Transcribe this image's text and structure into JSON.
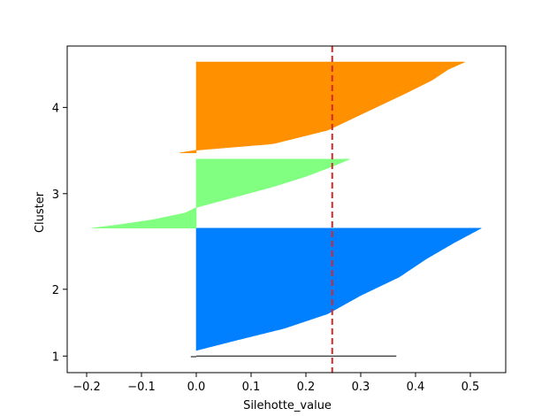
{
  "chart_data": {
    "type": "silhouette",
    "title": "",
    "xlabel": "Silehotte_value",
    "ylabel": "Cluster",
    "xlim": [
      -0.235,
      0.555
    ],
    "x_ticks": [
      -0.2,
      -0.1,
      0.0,
      0.1,
      0.2,
      0.3,
      0.4,
      0.5
    ],
    "x_tick_labels": [
      "−0.2",
      "−0.1",
      "0.0",
      "0.1",
      "0.2",
      "0.3",
      "0.4",
      "0.5"
    ],
    "y_tick_labels": [
      "1",
      "2",
      "3",
      "4"
    ],
    "average_silhouette": 0.248,
    "average_line_color": "#d62728",
    "grid": false,
    "legend": "none",
    "clusters": [
      {
        "label": "1",
        "color": "#000000",
        "start": 0,
        "samples": 2,
        "values": [
          -0.01,
          0.365
        ]
      },
      {
        "label": "2",
        "color": "#0080ff",
        "start": 10,
        "samples": 195,
        "profile": [
          [
            0,
            0.0
          ],
          [
            0.08,
            0.07
          ],
          [
            0.18,
            0.16
          ],
          [
            0.3,
            0.24
          ],
          [
            0.45,
            0.3
          ],
          [
            0.6,
            0.37
          ],
          [
            0.75,
            0.42
          ],
          [
            0.88,
            0.47
          ],
          [
            1.0,
            0.52
          ]
        ]
      },
      {
        "label": "3",
        "color": "#80ff80",
        "start": 205,
        "samples": 110,
        "profile": [
          [
            0,
            -0.19
          ],
          [
            0.05,
            -0.14
          ],
          [
            0.12,
            -0.08
          ],
          [
            0.22,
            -0.02
          ],
          [
            0.3,
            0.0
          ],
          [
            0.45,
            0.07
          ],
          [
            0.6,
            0.14
          ],
          [
            0.75,
            0.2
          ],
          [
            0.9,
            0.25
          ],
          [
            1.0,
            0.28
          ]
        ]
      },
      {
        "label": "4",
        "color": "#ff9000",
        "start": 325,
        "samples": 145,
        "profile": [
          [
            0,
            -0.03
          ],
          [
            0.03,
            0.0
          ],
          [
            0.1,
            0.14
          ],
          [
            0.25,
            0.24
          ],
          [
            0.45,
            0.31
          ],
          [
            0.65,
            0.38
          ],
          [
            0.8,
            0.43
          ],
          [
            0.92,
            0.46
          ],
          [
            1.0,
            0.49
          ]
        ]
      }
    ]
  }
}
